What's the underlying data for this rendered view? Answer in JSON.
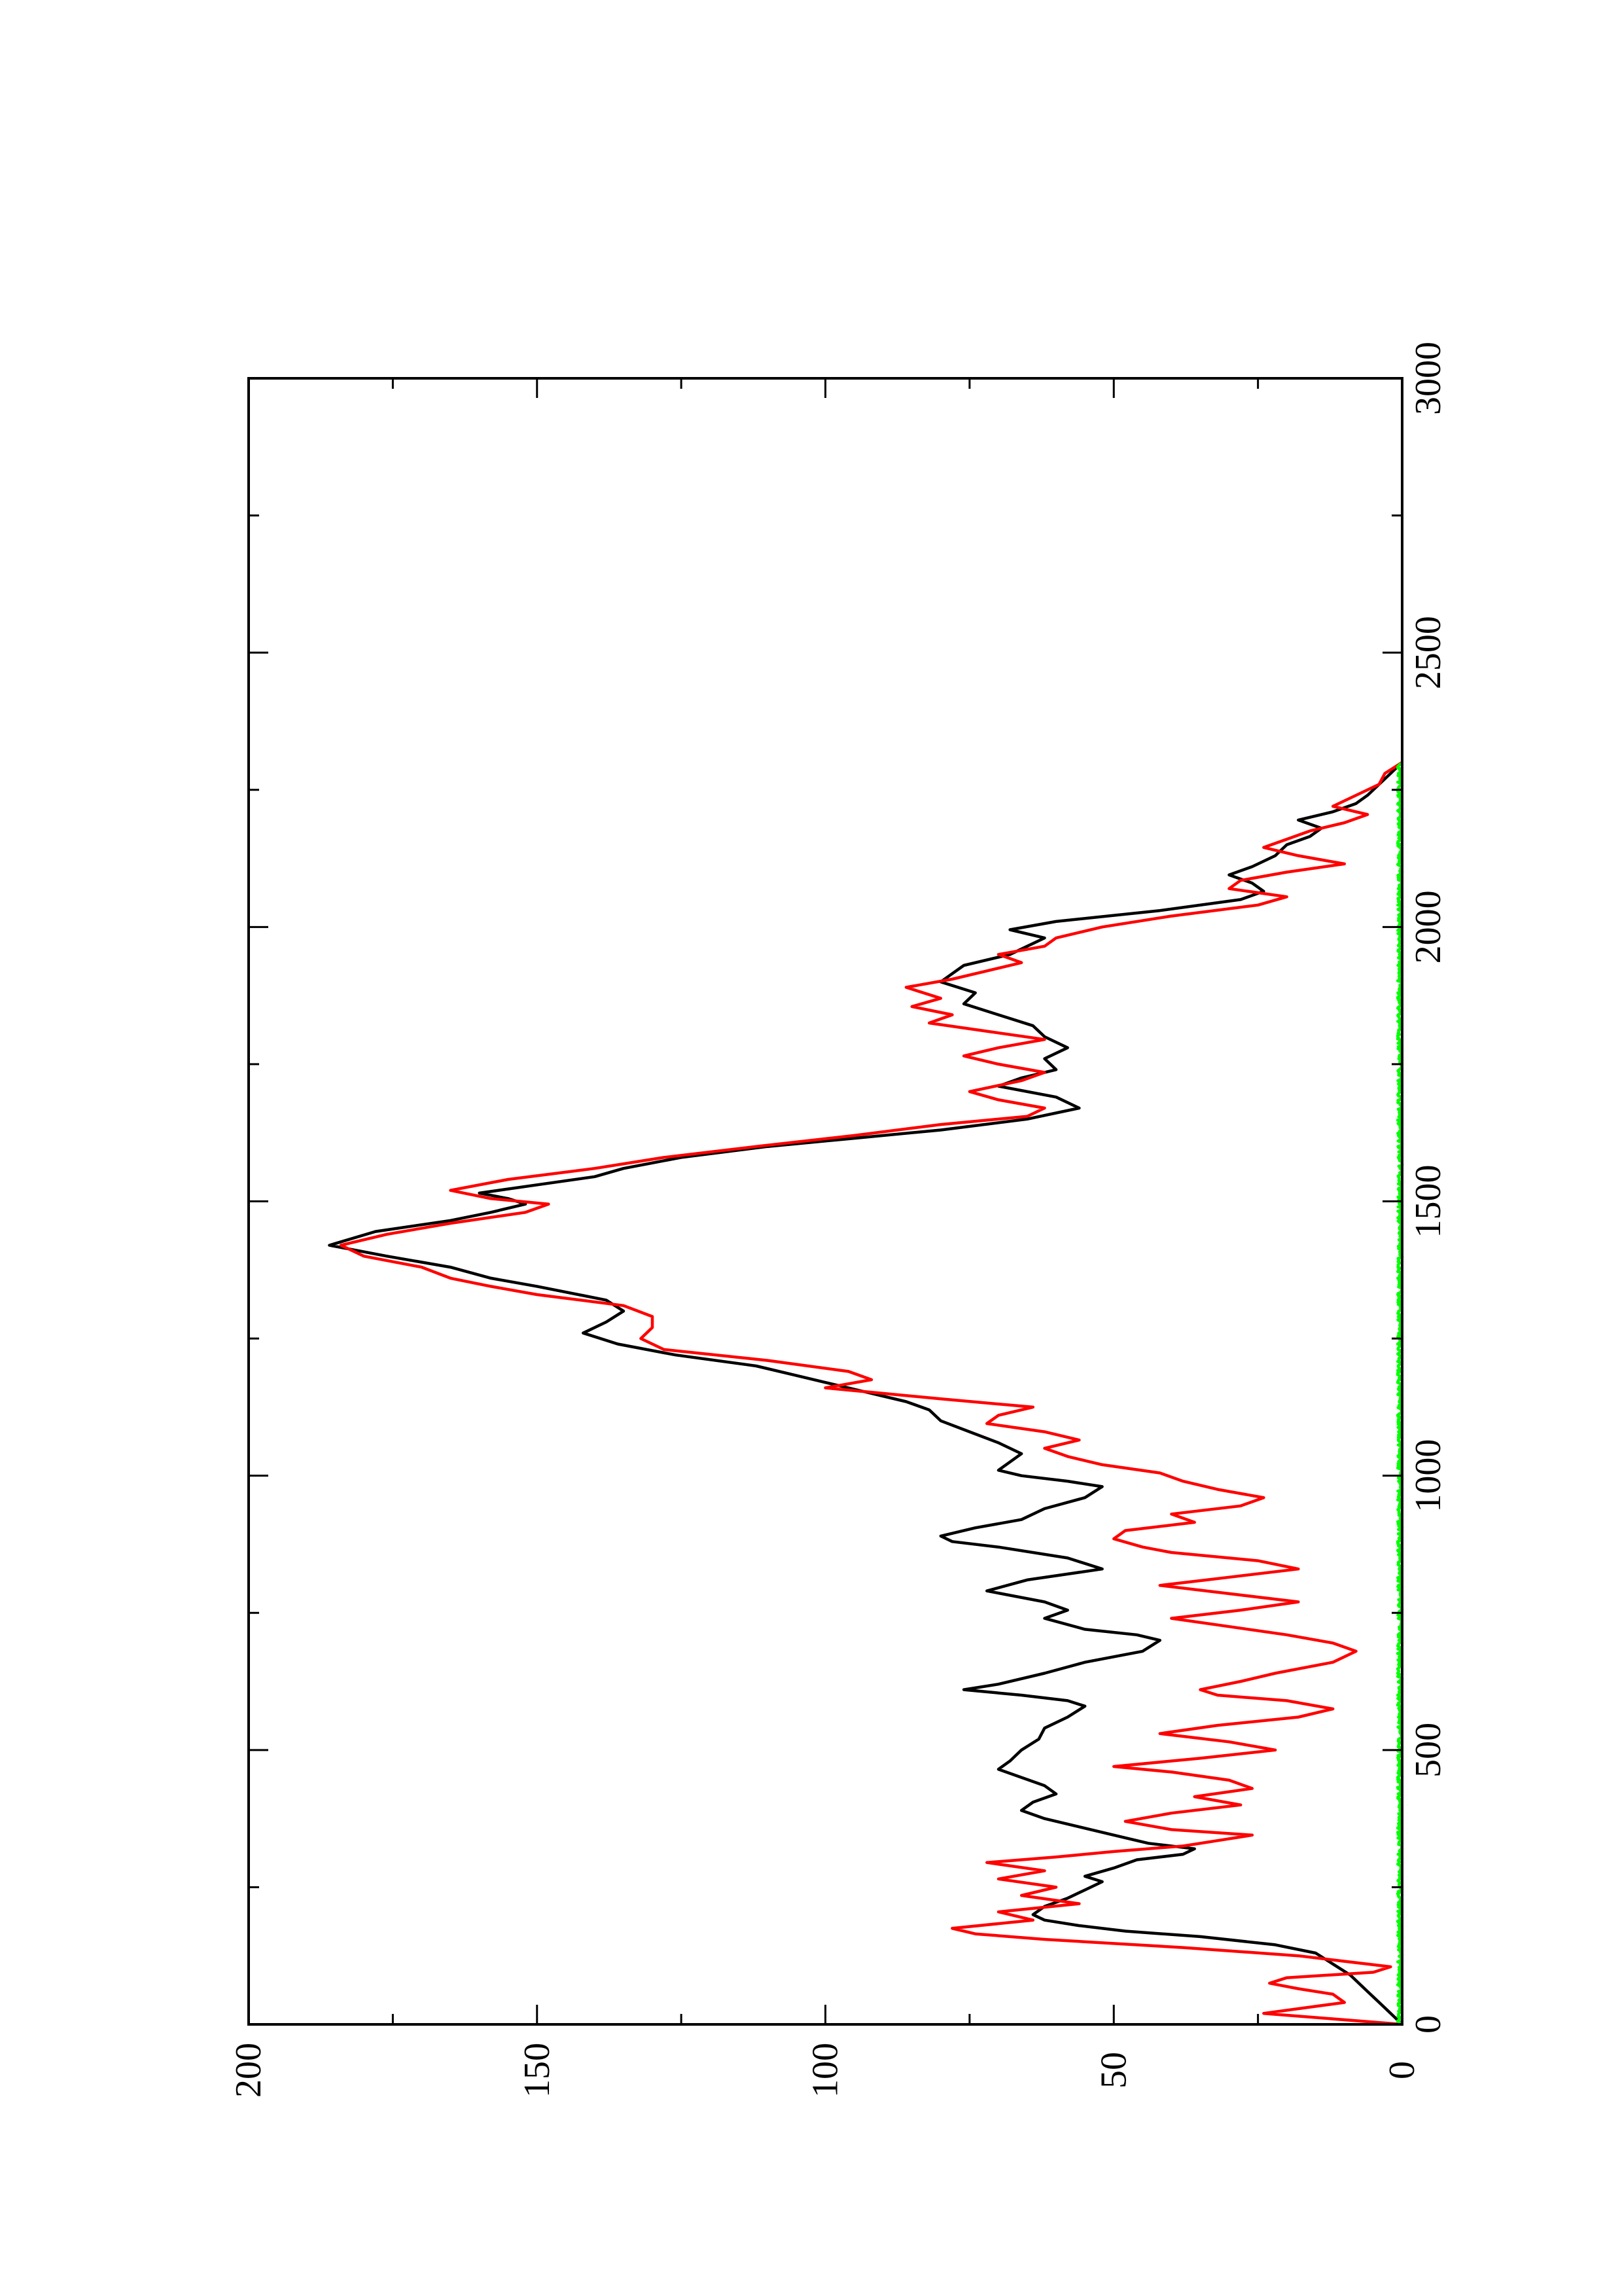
{
  "chart_data": {
    "type": "line",
    "orientation": "rotated-90-ccw",
    "title": "",
    "xlabel": "",
    "ylabel": "",
    "xlim": [
      0,
      3000
    ],
    "ylim": [
      0,
      200
    ],
    "grid": false,
    "x_ticks": [
      {
        "value": 0,
        "label": "0"
      },
      {
        "value": 500,
        "label": "500"
      },
      {
        "value": 1000,
        "label": "1000"
      },
      {
        "value": 1500,
        "label": "1500"
      },
      {
        "value": 2000,
        "label": "2000"
      },
      {
        "value": 2500,
        "label": "2500"
      },
      {
        "value": 3000,
        "label": "3000"
      }
    ],
    "x_minor_ticks": [
      250,
      750,
      1250,
      1750,
      2250,
      2750
    ],
    "y_ticks": [
      {
        "value": 0,
        "label": "0"
      },
      {
        "value": 50,
        "label": "50"
      },
      {
        "value": 100,
        "label": "100"
      },
      {
        "value": 150,
        "label": "150"
      },
      {
        "value": 200,
        "label": "200"
      }
    ],
    "y_minor_ticks": [
      25,
      75,
      125,
      175
    ],
    "series": [
      {
        "color": "#000000",
        "points": [
          [
            0,
            0
          ],
          [
            30,
            3
          ],
          [
            60,
            6
          ],
          [
            90,
            9
          ],
          [
            110,
            12
          ],
          [
            130,
            15
          ],
          [
            145,
            22
          ],
          [
            160,
            35
          ],
          [
            170,
            48
          ],
          [
            180,
            56
          ],
          [
            190,
            62
          ],
          [
            200,
            64
          ],
          [
            215,
            62
          ],
          [
            230,
            58
          ],
          [
            245,
            55
          ],
          [
            260,
            52
          ],
          [
            270,
            55
          ],
          [
            285,
            50
          ],
          [
            300,
            46
          ],
          [
            310,
            38
          ],
          [
            320,
            36
          ],
          [
            330,
            44
          ],
          [
            345,
            50
          ],
          [
            360,
            56
          ],
          [
            375,
            62
          ],
          [
            390,
            66
          ],
          [
            405,
            64
          ],
          [
            420,
            60
          ],
          [
            435,
            62
          ],
          [
            450,
            66
          ],
          [
            465,
            70
          ],
          [
            480,
            68
          ],
          [
            500,
            66
          ],
          [
            520,
            63
          ],
          [
            540,
            62
          ],
          [
            560,
            58
          ],
          [
            580,
            55
          ],
          [
            590,
            58
          ],
          [
            600,
            66
          ],
          [
            610,
            76
          ],
          [
            620,
            70
          ],
          [
            640,
            62
          ],
          [
            660,
            55
          ],
          [
            680,
            45
          ],
          [
            700,
            42
          ],
          [
            710,
            46
          ],
          [
            720,
            55
          ],
          [
            740,
            62
          ],
          [
            755,
            58
          ],
          [
            770,
            62
          ],
          [
            790,
            72
          ],
          [
            810,
            65
          ],
          [
            830,
            52
          ],
          [
            850,
            58
          ],
          [
            870,
            70
          ],
          [
            880,
            78
          ],
          [
            890,
            80
          ],
          [
            905,
            74
          ],
          [
            920,
            66
          ],
          [
            940,
            62
          ],
          [
            960,
            55
          ],
          [
            980,
            52
          ],
          [
            990,
            58
          ],
          [
            1000,
            66
          ],
          [
            1010,
            70
          ],
          [
            1025,
            68
          ],
          [
            1040,
            66
          ],
          [
            1060,
            70
          ],
          [
            1080,
            75
          ],
          [
            1100,
            80
          ],
          [
            1120,
            82
          ],
          [
            1135,
            86
          ],
          [
            1150,
            92
          ],
          [
            1170,
            100
          ],
          [
            1185,
            106
          ],
          [
            1200,
            112
          ],
          [
            1220,
            126
          ],
          [
            1240,
            136
          ],
          [
            1260,
            142
          ],
          [
            1280,
            138
          ],
          [
            1300,
            135
          ],
          [
            1320,
            138
          ],
          [
            1345,
            150
          ],
          [
            1360,
            158
          ],
          [
            1380,
            165
          ],
          [
            1400,
            176
          ],
          [
            1420,
            186
          ],
          [
            1445,
            178
          ],
          [
            1465,
            165
          ],
          [
            1480,
            158
          ],
          [
            1495,
            152
          ],
          [
            1505,
            155
          ],
          [
            1515,
            160
          ],
          [
            1530,
            150
          ],
          [
            1545,
            140
          ],
          [
            1560,
            135
          ],
          [
            1580,
            125
          ],
          [
            1600,
            110
          ],
          [
            1615,
            95
          ],
          [
            1630,
            80
          ],
          [
            1650,
            65
          ],
          [
            1670,
            56
          ],
          [
            1690,
            60
          ],
          [
            1710,
            70
          ],
          [
            1725,
            66
          ],
          [
            1740,
            60
          ],
          [
            1760,
            62
          ],
          [
            1780,
            58
          ],
          [
            1800,
            62
          ],
          [
            1820,
            64
          ],
          [
            1840,
            70
          ],
          [
            1860,
            76
          ],
          [
            1880,
            74
          ],
          [
            1900,
            80
          ],
          [
            1915,
            78
          ],
          [
            1930,
            76
          ],
          [
            1950,
            68
          ],
          [
            1965,
            65
          ],
          [
            1980,
            62
          ],
          [
            1995,
            68
          ],
          [
            2010,
            60
          ],
          [
            2030,
            42
          ],
          [
            2050,
            28
          ],
          [
            2065,
            24
          ],
          [
            2080,
            26
          ],
          [
            2095,
            30
          ],
          [
            2110,
            26
          ],
          [
            2130,
            22
          ],
          [
            2150,
            20
          ],
          [
            2165,
            16
          ],
          [
            2180,
            14
          ],
          [
            2195,
            18
          ],
          [
            2210,
            12
          ],
          [
            2225,
            8
          ],
          [
            2240,
            6
          ],
          [
            2260,
            4
          ],
          [
            2280,
            2
          ],
          [
            2300,
            0
          ]
        ]
      },
      {
        "color": "#ff0000",
        "points": [
          [
            0,
            0
          ],
          [
            20,
            24
          ],
          [
            40,
            10
          ],
          [
            55,
            12
          ],
          [
            65,
            18
          ],
          [
            75,
            23
          ],
          [
            85,
            20
          ],
          [
            95,
            5
          ],
          [
            105,
            2
          ],
          [
            115,
            10
          ],
          [
            125,
            18
          ],
          [
            140,
            38
          ],
          [
            155,
            62
          ],
          [
            165,
            74
          ],
          [
            175,
            78
          ],
          [
            190,
            64
          ],
          [
            205,
            70
          ],
          [
            220,
            56
          ],
          [
            235,
            66
          ],
          [
            250,
            60
          ],
          [
            265,
            70
          ],
          [
            280,
            62
          ],
          [
            295,
            72
          ],
          [
            305,
            60
          ],
          [
            315,
            50
          ],
          [
            325,
            38
          ],
          [
            335,
            32
          ],
          [
            345,
            26
          ],
          [
            355,
            40
          ],
          [
            370,
            48
          ],
          [
            385,
            40
          ],
          [
            400,
            28
          ],
          [
            415,
            36
          ],
          [
            430,
            26
          ],
          [
            445,
            30
          ],
          [
            460,
            40
          ],
          [
            470,
            50
          ],
          [
            485,
            35
          ],
          [
            500,
            22
          ],
          [
            515,
            30
          ],
          [
            530,
            42
          ],
          [
            545,
            32
          ],
          [
            560,
            18
          ],
          [
            575,
            12
          ],
          [
            590,
            20
          ],
          [
            600,
            32
          ],
          [
            610,
            35
          ],
          [
            625,
            28
          ],
          [
            640,
            22
          ],
          [
            660,
            12
          ],
          [
            680,
            8
          ],
          [
            695,
            12
          ],
          [
            710,
            20
          ],
          [
            725,
            30
          ],
          [
            740,
            40
          ],
          [
            755,
            28
          ],
          [
            770,
            18
          ],
          [
            785,
            30
          ],
          [
            800,
            42
          ],
          [
            815,
            30
          ],
          [
            830,
            18
          ],
          [
            845,
            25
          ],
          [
            860,
            40
          ],
          [
            870,
            45
          ],
          [
            885,
            50
          ],
          [
            900,
            48
          ],
          [
            915,
            36
          ],
          [
            930,
            40
          ],
          [
            945,
            28
          ],
          [
            960,
            24
          ],
          [
            975,
            32
          ],
          [
            990,
            38
          ],
          [
            1005,
            42
          ],
          [
            1020,
            52
          ],
          [
            1035,
            58
          ],
          [
            1050,
            62
          ],
          [
            1065,
            56
          ],
          [
            1080,
            62
          ],
          [
            1095,
            72
          ],
          [
            1110,
            70
          ],
          [
            1125,
            64
          ],
          [
            1140,
            80
          ],
          [
            1160,
            100
          ],
          [
            1175,
            92
          ],
          [
            1190,
            96
          ],
          [
            1210,
            110
          ],
          [
            1230,
            128
          ],
          [
            1250,
            132
          ],
          [
            1270,
            130
          ],
          [
            1290,
            130
          ],
          [
            1310,
            135
          ],
          [
            1330,
            150
          ],
          [
            1345,
            158
          ],
          [
            1360,
            165
          ],
          [
            1380,
            170
          ],
          [
            1400,
            180
          ],
          [
            1420,
            184
          ],
          [
            1440,
            176
          ],
          [
            1460,
            165
          ],
          [
            1480,
            152
          ],
          [
            1495,
            148
          ],
          [
            1505,
            158
          ],
          [
            1520,
            165
          ],
          [
            1540,
            155
          ],
          [
            1560,
            140
          ],
          [
            1580,
            128
          ],
          [
            1600,
            112
          ],
          [
            1620,
            95
          ],
          [
            1640,
            80
          ],
          [
            1655,
            65
          ],
          [
            1670,
            62
          ],
          [
            1685,
            70
          ],
          [
            1700,
            75
          ],
          [
            1720,
            66
          ],
          [
            1735,
            62
          ],
          [
            1750,
            70
          ],
          [
            1765,
            76
          ],
          [
            1780,
            70
          ],
          [
            1795,
            62
          ],
          [
            1810,
            72
          ],
          [
            1825,
            82
          ],
          [
            1840,
            78
          ],
          [
            1855,
            85
          ],
          [
            1870,
            80
          ],
          [
            1890,
            86
          ],
          [
            1905,
            78
          ],
          [
            1920,
            72
          ],
          [
            1935,
            66
          ],
          [
            1950,
            70
          ],
          [
            1965,
            62
          ],
          [
            1980,
            60
          ],
          [
            2000,
            52
          ],
          [
            2020,
            40
          ],
          [
            2040,
            25
          ],
          [
            2055,
            20
          ],
          [
            2070,
            30
          ],
          [
            2085,
            28
          ],
          [
            2100,
            20
          ],
          [
            2115,
            10
          ],
          [
            2130,
            18
          ],
          [
            2145,
            24
          ],
          [
            2160,
            20
          ],
          [
            2175,
            16
          ],
          [
            2190,
            10
          ],
          [
            2205,
            6
          ],
          [
            2220,
            12
          ],
          [
            2240,
            8
          ],
          [
            2260,
            4
          ],
          [
            2280,
            3
          ],
          [
            2300,
            0
          ]
        ]
      },
      {
        "color": "#00ff00",
        "noise_amplitude": 0.8,
        "x_range": [
          0,
          2300
        ],
        "points": [
          [
            0,
            0
          ],
          [
            2300,
            0
          ]
        ]
      }
    ]
  }
}
